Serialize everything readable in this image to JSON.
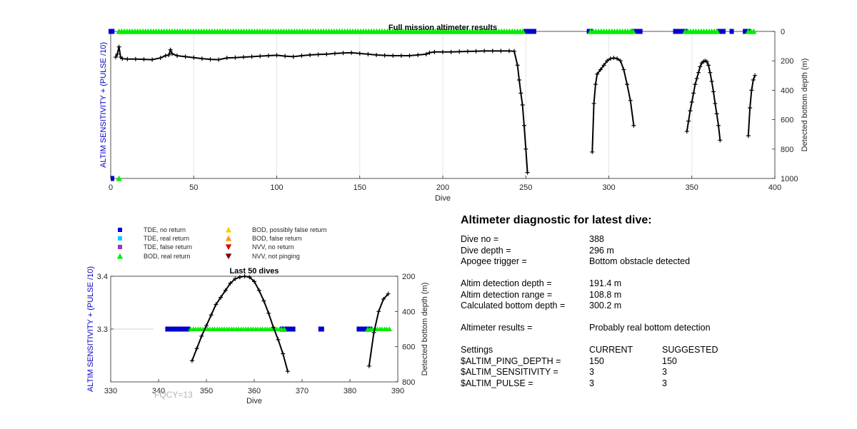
{
  "chart_data": [
    {
      "type": "line",
      "title": "Full mission altimeter results",
      "xlabel": "Dive",
      "ylabel_left": "ALTIM SENSITIVITY + (PULSE /10)",
      "ylabel_right": "Detected bottom depth (m)",
      "xlim": [
        0,
        400
      ],
      "xticks": [
        "0",
        "50",
        "100",
        "150",
        "200",
        "250",
        "300",
        "350",
        "400"
      ],
      "y_right_lim": [
        1000,
        0
      ],
      "y_right_ticks": [
        "0",
        "200",
        "400",
        "600",
        "800",
        "1000"
      ],
      "grid": "vertical",
      "series": [
        {
          "kind": "depth",
          "style": "black line with + markers",
          "segments": [
            [
              [
                3,
                175
              ],
              [
                4,
                155
              ],
              [
                5,
                105
              ],
              [
                6,
                175
              ],
              [
                7,
                185
              ],
              [
                10,
                188
              ],
              [
                15,
                188
              ],
              [
                20,
                190
              ],
              [
                25,
                192
              ],
              [
                30,
                180
              ],
              [
                33,
                165
              ],
              [
                35,
                160
              ],
              [
                36,
                125
              ],
              [
                37,
                152
              ],
              [
                40,
                165
              ],
              [
                45,
                172
              ],
              [
                50,
                178
              ],
              [
                55,
                185
              ],
              [
                60,
                190
              ],
              [
                65,
                192
              ],
              [
                70,
                180
              ],
              [
                75,
                178
              ],
              [
                80,
                175
              ],
              [
                85,
                172
              ],
              [
                90,
                168
              ],
              [
                95,
                165
              ],
              [
                100,
                162
              ],
              [
                105,
                168
              ],
              [
                110,
                172
              ],
              [
                115,
                165
              ],
              [
                120,
                160
              ],
              [
                125,
                157
              ],
              [
                130,
                155
              ],
              [
                135,
                150
              ],
              [
                140,
                147
              ],
              [
                145,
                145
              ],
              [
                150,
                150
              ],
              [
                155,
                155
              ],
              [
                160,
                160
              ],
              [
                165,
                163
              ],
              [
                170,
                165
              ],
              [
                175,
                165
              ],
              [
                180,
                165
              ],
              [
                185,
                160
              ],
              [
                190,
                155
              ],
              [
                192,
                145
              ],
              [
                195,
                140
              ],
              [
                200,
                140
              ],
              [
                205,
                140
              ],
              [
                210,
                138
              ],
              [
                215,
                136
              ],
              [
                220,
                135
              ],
              [
                225,
                133
              ],
              [
                230,
                133
              ],
              [
                235,
                133
              ],
              [
                240,
                133
              ],
              [
                243,
                135
              ],
              [
                245,
                230
              ],
              [
                246,
                330
              ],
              [
                247,
                420
              ],
              [
                248,
                500
              ],
              [
                249,
                640
              ],
              [
                250,
                800
              ],
              [
                251,
                960
              ]
            ],
            [
              [
                290,
                820
              ],
              [
                291,
                490
              ],
              [
                292,
                360
              ],
              [
                293,
                290
              ],
              [
                295,
                260
              ],
              [
                297,
                230
              ],
              [
                299,
                200
              ],
              [
                301,
                185
              ],
              [
                303,
                180
              ],
              [
                305,
                185
              ],
              [
                307,
                200
              ],
              [
                309,
                260
              ],
              [
                311,
                360
              ],
              [
                313,
                470
              ],
              [
                315,
                640
              ]
            ],
            [
              [
                347,
                680
              ],
              [
                348,
                610
              ],
              [
                349,
                540
              ],
              [
                350,
                480
              ],
              [
                351,
                420
              ],
              [
                352,
                360
              ],
              [
                353,
                320
              ],
              [
                354,
                280
              ],
              [
                355,
                240
              ],
              [
                356,
                215
              ],
              [
                357,
                205
              ],
              [
                358,
                200
              ],
              [
                359,
                205
              ],
              [
                360,
                230
              ],
              [
                361,
                280
              ],
              [
                362,
                340
              ],
              [
                363,
                410
              ],
              [
                364,
                490
              ],
              [
                365,
                560
              ],
              [
                366,
                640
              ],
              [
                367,
                740
              ]
            ],
            [
              [
                384,
                710
              ],
              [
                385,
                520
              ],
              [
                386,
                400
              ],
              [
                387,
                330
              ],
              [
                388,
                300
              ]
            ]
          ]
        }
      ],
      "event_bands": {
        "TDE_no_return": [
          [
            0,
            1
          ],
          [
            250,
            255
          ],
          [
            288,
            289
          ],
          [
            315,
            319
          ],
          [
            340,
            346
          ],
          [
            366,
            369
          ],
          [
            374,
            374
          ],
          [
            382,
            384
          ]
        ],
        "BOD_real_return": [
          [
            5,
            249
          ],
          [
            289,
            315
          ],
          [
            346,
            366
          ],
          [
            384,
            388
          ]
        ],
        "BOD_real_return_at_bottom": [
          5
        ]
      }
    },
    {
      "type": "line",
      "title": "Last 50 dives",
      "xlabel": "Dive",
      "ylabel_left": "ALTIM SENSITIVITY + (PULSE /10)",
      "ylabel_right": "Detected bottom depth (m)",
      "xlim": [
        330,
        390
      ],
      "xticks": [
        "330",
        "340",
        "350",
        "360",
        "370",
        "380",
        "390"
      ],
      "y_left_ticks": [
        "3.3",
        "3.4"
      ],
      "y_right_lim": [
        800,
        200
      ],
      "y_right_ticks": [
        "200",
        "400",
        "600",
        "800"
      ],
      "series": [
        {
          "kind": "depth",
          "style": "black line with + markers",
          "segments": [
            [
              [
                347,
                680
              ],
              [
                348,
                610
              ],
              [
                349,
                540
              ],
              [
                350,
                480
              ],
              [
                351,
                420
              ],
              [
                352,
                360
              ],
              [
                353,
                320
              ],
              [
                354,
                280
              ],
              [
                355,
                240
              ],
              [
                356,
                215
              ],
              [
                357,
                205
              ],
              [
                358,
                200
              ],
              [
                359,
                205
              ],
              [
                360,
                230
              ],
              [
                361,
                280
              ],
              [
                362,
                340
              ],
              [
                363,
                410
              ],
              [
                364,
                490
              ],
              [
                365,
                560
              ],
              [
                366,
                640
              ],
              [
                367,
                740
              ]
            ],
            [
              [
                384,
                710
              ],
              [
                385,
                520
              ],
              [
                386,
                400
              ],
              [
                387,
                330
              ],
              [
                388,
                300
              ]
            ]
          ]
        }
      ],
      "event_markers": {
        "TDE_no_return": [
          342,
          343,
          344,
          345,
          346,
          366,
          367,
          368,
          374,
          382,
          383,
          384
        ],
        "BOD_real_return": [
          347,
          348,
          349,
          350,
          351,
          352,
          353,
          354,
          355,
          356,
          357,
          358,
          359,
          360,
          361,
          362,
          363,
          364,
          365,
          366,
          384,
          385,
          386,
          387,
          388
        ]
      },
      "annotation": "FQCY=13"
    }
  ],
  "legend": [
    {
      "label": "TDE, no return",
      "marker": "square",
      "color": "#0000cc"
    },
    {
      "label": "TDE, real return",
      "marker": "square",
      "color": "#00ccff"
    },
    {
      "label": "TDE, false return",
      "marker": "square",
      "color": "#9933cc"
    },
    {
      "label": "BOD, real return",
      "marker": "triangle-up",
      "color": "#00ee00"
    },
    {
      "label": "BOD, possibly false return",
      "marker": "triangle-up",
      "color": "#ffcc00"
    },
    {
      "label": "BOD, false return",
      "marker": "triangle-up",
      "color": "#ff9900"
    },
    {
      "label": "NVV, no return",
      "marker": "triangle-down",
      "color": "#dd0000"
    },
    {
      "label": "NVV, not pinging",
      "marker": "triangle-down",
      "color": "#770000"
    }
  ],
  "colors": {
    "left_axis_label": "#0000c8",
    "tde_no_return": "#0000cc",
    "bod_real_return": "#00ee00",
    "depth_line": "#000000",
    "grid": "#e6e6e6",
    "watermark": "#b3b3b3"
  },
  "diagnostic": {
    "heading": "Altimeter diagnostic for latest dive:",
    "dive_no_label": "Dive no =",
    "dive_no": "388",
    "dive_depth_label": "Dive depth =",
    "dive_depth": "296 m",
    "apogee_label": "Apogee trigger =",
    "apogee": "Bottom obstacle detected",
    "altim_depth_label": "Altim detection depth =",
    "altim_depth": "191.4 m",
    "altim_range_label": "Altim detection range =",
    "altim_range": "108.8 m",
    "calc_depth_label": "Calculated bottom depth =",
    "calc_depth": "300.2 m",
    "results_label": "Altimeter results =",
    "results": "Probably real bottom detection",
    "settings_label": "Settings",
    "current_label": "CURRENT",
    "suggested_label": "SUGGESTED",
    "settings": [
      {
        "name": "$ALTIM_PING_DEPTH =",
        "current": "150",
        "suggested": "150"
      },
      {
        "name": "$ALTIM_SENSITIVITY =",
        "current": "3",
        "suggested": "3"
      },
      {
        "name": "$ALTIM_PULSE =",
        "current": "3",
        "suggested": "3"
      }
    ]
  }
}
